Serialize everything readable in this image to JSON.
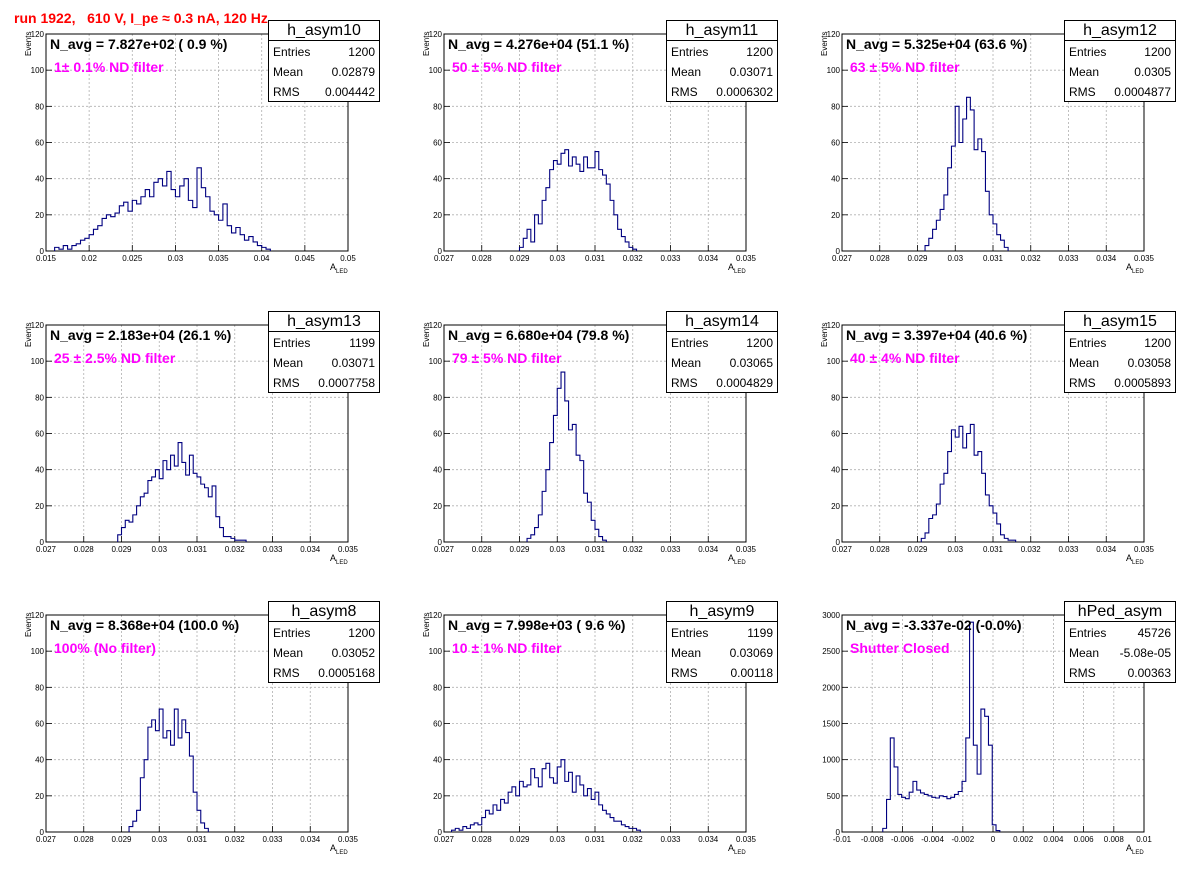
{
  "title": "run 1922,   610 V, I_pe ≈ 0.3 nA, 120 Hz",
  "colors": {
    "title": "#ff0000",
    "annotation": "#ff00ff",
    "hist": "#000080",
    "grid": "#b0b0b0"
  },
  "chart_data": [
    {
      "type": "bar",
      "name": "h_asym10",
      "annotation": "N_avg = 7.827e+02 ( 0.9 %)",
      "note": "1± 0.1% ND filter",
      "stats": {
        "entries": "1200",
        "mean": "0.02879",
        "rms": "0.004442"
      },
      "xlabel": "A",
      "xlabel_sub": "LED",
      "ylabel": "Events",
      "xlim": [
        0.015,
        0.05
      ],
      "ylim": [
        0,
        120
      ],
      "xticks": [
        "0.015",
        "0.02",
        "0.025",
        "0.03",
        "0.035",
        "0.04",
        "0.045",
        "0.05"
      ],
      "yticks": [
        "0",
        "20",
        "40",
        "60",
        "80",
        "100",
        "120"
      ],
      "bin_start": 0.016,
      "bin_width": 0.0005,
      "values": [
        2,
        1,
        3,
        1,
        3,
        4,
        6,
        7,
        9,
        12,
        14,
        18,
        20,
        19,
        21,
        25,
        27,
        22,
        28,
        26,
        30,
        34,
        30,
        38,
        40,
        36,
        44,
        34,
        30,
        36,
        40,
        28,
        24,
        46,
        35,
        30,
        22,
        20,
        17,
        26,
        14,
        10,
        13,
        9,
        6,
        8,
        5,
        3,
        2,
        1
      ]
    },
    {
      "type": "bar",
      "name": "h_asym11",
      "annotation": "N_avg = 4.276e+04 (51.1 %)",
      "note": "50 ± 5% ND filter",
      "stats": {
        "entries": "1200",
        "mean": "0.03071",
        "rms": "0.0006302"
      },
      "xlabel": "A",
      "xlabel_sub": "LED",
      "ylabel": "Events",
      "xlim": [
        0.027,
        0.035
      ],
      "ylim": [
        0,
        120
      ],
      "xticks": [
        "0.027",
        "0.028",
        "0.029",
        "0.03",
        "0.031",
        "0.032",
        "0.033",
        "0.034",
        "0.035"
      ],
      "yticks": [
        "0",
        "20",
        "40",
        "60",
        "80",
        "100",
        "120"
      ],
      "bin_start": 0.029,
      "bin_width": 0.0001,
      "values": [
        2,
        7,
        12,
        5,
        20,
        15,
        28,
        35,
        45,
        50,
        48,
        54,
        56,
        47,
        52,
        48,
        44,
        52,
        46,
        46,
        55,
        45,
        42,
        37,
        28,
        20,
        12,
        8,
        5,
        2,
        1
      ]
    },
    {
      "type": "bar",
      "name": "h_asym12",
      "annotation": "N_avg = 5.325e+04 (63.6 %)",
      "note": "63 ± 5% ND filter",
      "stats": {
        "entries": "1200",
        "mean": "0.0305",
        "rms": "0.0004877"
      },
      "xlabel": "A",
      "xlabel_sub": "LED",
      "ylabel": "Events",
      "xlim": [
        0.027,
        0.035
      ],
      "ylim": [
        0,
        120
      ],
      "xticks": [
        "0.027",
        "0.028",
        "0.029",
        "0.03",
        "0.031",
        "0.032",
        "0.033",
        "0.034",
        "0.035"
      ],
      "yticks": [
        "0",
        "20",
        "40",
        "60",
        "80",
        "100",
        "120"
      ],
      "bin_start": 0.0292,
      "bin_width": 0.0001,
      "values": [
        3,
        7,
        12,
        17,
        23,
        31,
        46,
        58,
        80,
        60,
        73,
        85,
        78,
        56,
        62,
        55,
        33,
        20,
        15,
        9,
        6,
        2
      ]
    },
    {
      "type": "bar",
      "name": "h_asym13",
      "annotation": "N_avg = 2.183e+04 (26.1 %)",
      "note": "25 ± 2.5% ND filter",
      "stats": {
        "entries": "1199",
        "mean": "0.03071",
        "rms": "0.0007758"
      },
      "xlabel": "A",
      "xlabel_sub": "LED",
      "ylabel": "Events",
      "xlim": [
        0.027,
        0.035
      ],
      "ylim": [
        0,
        120
      ],
      "xticks": [
        "0.027",
        "0.028",
        "0.029",
        "0.03",
        "0.031",
        "0.032",
        "0.033",
        "0.034",
        "0.035"
      ],
      "yticks": [
        "0",
        "20",
        "40",
        "60",
        "80",
        "100",
        "120"
      ],
      "bin_start": 0.0289,
      "bin_width": 0.0001,
      "values": [
        4,
        8,
        12,
        11,
        15,
        20,
        25,
        27,
        34,
        36,
        40,
        35,
        45,
        40,
        48,
        42,
        55,
        44,
        37,
        48,
        38,
        36,
        32,
        30,
        25,
        31,
        14,
        8,
        3,
        3,
        2,
        1,
        1,
        1
      ]
    },
    {
      "type": "bar",
      "name": "h_asym14",
      "annotation": "N_avg = 6.680e+04 (79.8 %)",
      "note": "79 ± 5% ND filter",
      "stats": {
        "entries": "1200",
        "mean": "0.03065",
        "rms": "0.0004829"
      },
      "xlabel": "A",
      "xlabel_sub": "LED",
      "ylabel": "Events",
      "xlim": [
        0.027,
        0.035
      ],
      "ylim": [
        0,
        120
      ],
      "xticks": [
        "0.027",
        "0.028",
        "0.029",
        "0.03",
        "0.031",
        "0.032",
        "0.033",
        "0.034",
        "0.035"
      ],
      "yticks": [
        "0",
        "20",
        "40",
        "60",
        "80",
        "100",
        "120"
      ],
      "bin_start": 0.0292,
      "bin_width": 0.0001,
      "values": [
        2,
        4,
        8,
        15,
        28,
        40,
        55,
        70,
        85,
        94,
        78,
        62,
        65,
        48,
        45,
        27,
        22,
        12,
        7,
        3,
        1
      ]
    },
    {
      "type": "bar",
      "name": "h_asym15",
      "annotation": "N_avg = 3.397e+04 (40.6 %)",
      "note": "40 ± 4% ND filter",
      "stats": {
        "entries": "1200",
        "mean": "0.03058",
        "rms": "0.0005893"
      },
      "xlabel": "A",
      "xlabel_sub": "LED",
      "ylabel": "Events",
      "xlim": [
        0.027,
        0.035
      ],
      "ylim": [
        0,
        120
      ],
      "xticks": [
        "0.027",
        "0.028",
        "0.029",
        "0.03",
        "0.031",
        "0.032",
        "0.033",
        "0.034",
        "0.035"
      ],
      "yticks": [
        "0",
        "20",
        "40",
        "60",
        "80",
        "100",
        "120"
      ],
      "bin_start": 0.0291,
      "bin_width": 0.0001,
      "values": [
        2,
        5,
        13,
        15,
        21,
        32,
        38,
        50,
        62,
        58,
        64,
        52,
        60,
        65,
        48,
        50,
        38,
        26,
        20,
        16,
        10,
        4,
        2,
        1,
        1
      ]
    },
    {
      "type": "bar",
      "name": "h_asym8",
      "annotation": "N_avg = 8.368e+04 (100.0 %)",
      "note": "100% (No filter)",
      "stats": {
        "entries": "1200",
        "mean": "0.03052",
        "rms": "0.0005168"
      },
      "xlabel": "A",
      "xlabel_sub": "LED",
      "ylabel": "Events",
      "xlim": [
        0.027,
        0.035
      ],
      "ylim": [
        0,
        120
      ],
      "xticks": [
        "0.027",
        "0.028",
        "0.029",
        "0.03",
        "0.031",
        "0.032",
        "0.033",
        "0.034",
        "0.035"
      ],
      "yticks": [
        "0",
        "20",
        "40",
        "60",
        "80",
        "100",
        "120"
      ],
      "bin_start": 0.0292,
      "bin_width": 0.0001,
      "values": [
        3,
        6,
        12,
        30,
        40,
        58,
        62,
        56,
        68,
        52,
        56,
        48,
        68,
        52,
        62,
        55,
        42,
        22,
        12,
        5,
        2
      ]
    },
    {
      "type": "bar",
      "name": "h_asym9",
      "annotation": "N_avg = 7.998e+03 ( 9.6 %)",
      "note": "10 ± 1% ND filter",
      "stats": {
        "entries": "1199",
        "mean": "0.03069",
        "rms": "0.00118"
      },
      "xlabel": "A",
      "xlabel_sub": "LED",
      "ylabel": "Events",
      "xlim": [
        0.027,
        0.035
      ],
      "ylim": [
        0,
        120
      ],
      "xticks": [
        "0.027",
        "0.028",
        "0.029",
        "0.03",
        "0.031",
        "0.032",
        "0.033",
        "0.034",
        "0.035"
      ],
      "yticks": [
        "0",
        "20",
        "40",
        "60",
        "80",
        "100",
        "120"
      ],
      "bin_start": 0.0272,
      "bin_width": 0.0001,
      "values": [
        1,
        2,
        1,
        3,
        2,
        4,
        5,
        4,
        8,
        12,
        10,
        15,
        12,
        18,
        16,
        22,
        25,
        20,
        28,
        25,
        26,
        35,
        30,
        25,
        35,
        38,
        30,
        27,
        36,
        40,
        28,
        33,
        22,
        31,
        26,
        20,
        24,
        18,
        22,
        15,
        12,
        10,
        8,
        6,
        6,
        4,
        3,
        2,
        2,
        1
      ]
    },
    {
      "type": "bar",
      "name": "hPed_asym",
      "annotation": "N_avg = -3.337e-02 (-0.0%)",
      "note": "Shutter Closed",
      "stats": {
        "entries": "45726",
        "mean": "-5.08e-05",
        "rms": "0.00363"
      },
      "xlabel": "A",
      "xlabel_sub": "LED",
      "ylabel": "",
      "xlim": [
        -0.01,
        0.01
      ],
      "ylim": [
        0,
        3000
      ],
      "xticks": [
        "-0.01",
        "-0.008",
        "-0.006",
        "-0.004",
        "-0.002",
        "0",
        "0.002",
        "0.004",
        "0.006",
        "0.008",
        "0.01"
      ],
      "yticks": [
        "0",
        "500",
        "1000",
        "1500",
        "2000",
        "2500",
        "3000"
      ],
      "bin_start": -0.0073,
      "bin_width": 0.00025,
      "values": [
        50,
        450,
        1300,
        900,
        520,
        480,
        460,
        550,
        700,
        580,
        540,
        520,
        500,
        480,
        470,
        500,
        490,
        460,
        480,
        520,
        560,
        700,
        1300,
        2900,
        1200,
        800,
        1700,
        1600,
        1200,
        100,
        20
      ]
    }
  ]
}
